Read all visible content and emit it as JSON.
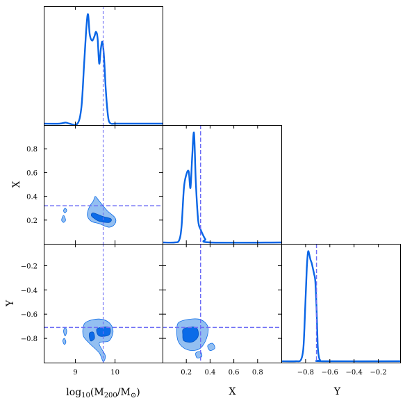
{
  "chart_data": {
    "type": "corner",
    "parameters": [
      {
        "key": "logM",
        "label_main": "log",
        "label_sub10": "10",
        "label_mid": "(M",
        "label_sub200": "200",
        "label_slash": "/M",
        "label_end": ")",
        "range": [
          8.2,
          11.2
        ],
        "ticks": [
          9,
          10
        ],
        "tick_labels": [
          "9",
          "10"
        ],
        "truth": 9.7
      },
      {
        "key": "X",
        "label": "X",
        "range": [
          0.0,
          1.0
        ],
        "ticks": [
          0.2,
          0.4,
          0.6,
          0.8
        ],
        "tick_labels": [
          "0.2",
          "0.4",
          "0.6",
          "0.8"
        ],
        "truth": 0.32
      },
      {
        "key": "Y",
        "label": "Y",
        "range": [
          -1.0,
          -0.02
        ],
        "ticks": [
          -0.8,
          -0.6,
          -0.4,
          -0.2
        ],
        "tick_labels": [
          "−0.8",
          "−0.6",
          "−0.4",
          "−0.2"
        ],
        "truth": -0.71
      }
    ],
    "marginals": {
      "logM": {
        "x": [
          8.2,
          8.6,
          8.75,
          8.85,
          9.05,
          9.15,
          9.22,
          9.28,
          9.32,
          9.36,
          9.42,
          9.48,
          9.52,
          9.56,
          9.6,
          9.64,
          9.68,
          9.72,
          9.76,
          9.8,
          9.84,
          9.9,
          9.98,
          10.05,
          10.2,
          11.2
        ],
        "density": [
          0.0,
          0.0,
          0.01,
          0.0,
          0.0,
          0.15,
          0.55,
          0.9,
          1.0,
          0.82,
          0.76,
          0.8,
          0.84,
          0.78,
          0.55,
          0.68,
          0.75,
          0.62,
          0.35,
          0.15,
          0.03,
          0.0,
          0.0,
          0.0,
          0.0,
          0.0
        ]
      },
      "X": {
        "x": [
          0.0,
          0.1,
          0.14,
          0.16,
          0.18,
          0.2,
          0.22,
          0.235,
          0.25,
          0.265,
          0.28,
          0.3,
          0.32,
          0.34,
          0.36,
          0.4,
          1.0
        ],
        "density": [
          0.0,
          0.0,
          0.02,
          0.15,
          0.5,
          0.62,
          0.65,
          0.5,
          0.8,
          1.0,
          0.55,
          0.2,
          0.12,
          0.07,
          0.03,
          0.0,
          0.0
        ]
      },
      "Y": {
        "x": [
          -1.0,
          -0.88,
          -0.84,
          -0.82,
          -0.81,
          -0.8,
          -0.79,
          -0.78,
          -0.77,
          -0.76,
          -0.75,
          -0.74,
          -0.73,
          -0.72,
          -0.71,
          -0.7,
          -0.69,
          -0.68,
          -0.66,
          -0.02
        ],
        "density": [
          0.0,
          0.0,
          0.01,
          0.1,
          0.3,
          0.58,
          0.85,
          1.0,
          0.98,
          0.93,
          0.9,
          0.85,
          0.8,
          0.73,
          0.5,
          0.15,
          0.04,
          0.01,
          0.0,
          0.0
        ]
      }
    },
    "contours_2d": {
      "X_vs_logM": {
        "outer": [
          [
            [
              9.5,
              0.4
            ],
            [
              9.6,
              0.36
            ],
            [
              9.8,
              0.28
            ],
            [
              10.0,
              0.22
            ],
            [
              10.0,
              0.17
            ],
            [
              9.85,
              0.14
            ],
            [
              9.6,
              0.17
            ],
            [
              9.4,
              0.19
            ],
            [
              9.3,
              0.24
            ],
            [
              9.35,
              0.31
            ],
            [
              9.45,
              0.36
            ]
          ],
          [
            [
              8.65,
              0.2
            ],
            [
              8.7,
              0.24
            ],
            [
              8.75,
              0.2
            ],
            [
              8.7,
              0.18
            ]
          ],
          [
            [
              8.7,
              0.28
            ],
            [
              8.74,
              0.3
            ],
            [
              8.78,
              0.28
            ],
            [
              8.73,
              0.26
            ]
          ]
        ],
        "inner": [
          [
            [
              9.45,
              0.26
            ],
            [
              9.7,
              0.23
            ],
            [
              9.9,
              0.21
            ],
            [
              9.85,
              0.18
            ],
            [
              9.6,
              0.19
            ],
            [
              9.45,
              0.22
            ],
            [
              9.4,
              0.24
            ]
          ]
        ]
      },
      "Y_vs_logM": {
        "outer": [
          [
            [
              9.3,
              -0.66
            ],
            [
              9.6,
              -0.64
            ],
            [
              9.85,
              -0.67
            ],
            [
              9.95,
              -0.74
            ],
            [
              9.85,
              -0.82
            ],
            [
              9.6,
              -0.84
            ],
            [
              9.75,
              -0.94
            ],
            [
              9.7,
              -0.99
            ],
            [
              9.6,
              -0.92
            ],
            [
              9.35,
              -0.84
            ],
            [
              9.2,
              -0.78
            ],
            [
              9.2,
              -0.7
            ]
          ],
          [
            [
              8.7,
              -0.74
            ],
            [
              8.74,
              -0.71
            ],
            [
              8.78,
              -0.74
            ],
            [
              8.74,
              -0.78
            ]
          ],
          [
            [
              8.68,
              -0.82
            ],
            [
              8.72,
              -0.8
            ],
            [
              8.76,
              -0.83
            ],
            [
              8.72,
              -0.85
            ]
          ]
        ],
        "inner": [
          [
            [
              9.55,
              -0.72
            ],
            [
              9.85,
              -0.71
            ],
            [
              9.85,
              -0.77
            ],
            [
              9.6,
              -0.78
            ]
          ],
          [
            [
              9.35,
              -0.76
            ],
            [
              9.45,
              -0.75
            ],
            [
              9.48,
              -0.8
            ],
            [
              9.38,
              -0.82
            ]
          ]
        ]
      },
      "Y_vs_X": {
        "outer": [
          [
            [
              0.15,
              -0.66
            ],
            [
              0.3,
              -0.64
            ],
            [
              0.38,
              -0.7
            ],
            [
              0.37,
              -0.8
            ],
            [
              0.32,
              -0.88
            ],
            [
              0.25,
              -0.9
            ],
            [
              0.18,
              -0.88
            ],
            [
              0.13,
              -0.82
            ],
            [
              0.12,
              -0.72
            ]
          ],
          [
            [
              0.38,
              -0.86
            ],
            [
              0.42,
              -0.84
            ],
            [
              0.44,
              -0.88
            ],
            [
              0.4,
              -0.9
            ]
          ],
          [
            [
              0.28,
              -0.92
            ],
            [
              0.32,
              -0.91
            ],
            [
              0.33,
              -0.95
            ],
            [
              0.29,
              -0.96
            ]
          ]
        ],
        "inner": [
          [
            [
              0.18,
              -0.72
            ],
            [
              0.28,
              -0.71
            ],
            [
              0.3,
              -0.78
            ],
            [
              0.25,
              -0.83
            ],
            [
              0.18,
              -0.82
            ],
            [
              0.17,
              -0.77
            ]
          ]
        ]
      }
    },
    "colors": {
      "line": "#0a66e6",
      "outer_fill": "#93bff1",
      "inner_fill": "#0b6be8",
      "truth_line": "#6d6df5"
    }
  }
}
